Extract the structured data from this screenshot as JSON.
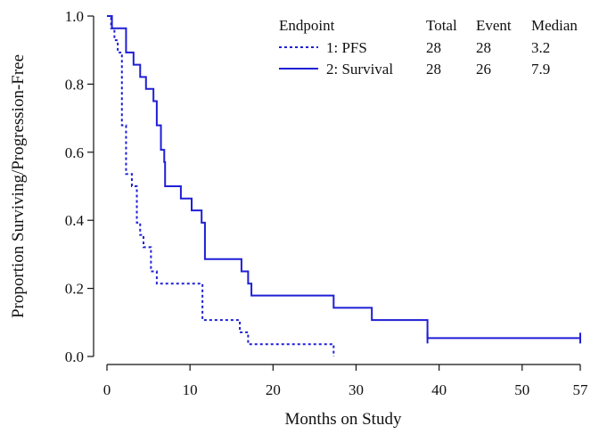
{
  "chart_data": {
    "type": "line",
    "title": "",
    "xlabel": "Months on Study",
    "ylabel": "Proportion Surviving/Progression-Free",
    "xlim": [
      0,
      57
    ],
    "ylim": [
      0,
      1
    ],
    "xticks": [
      0,
      10,
      20,
      30,
      40,
      50,
      57
    ],
    "xtick_labels": [
      "0",
      "10",
      "20",
      "30",
      "40",
      "50",
      "57"
    ],
    "yticks": [
      0,
      0.2,
      0.4,
      0.6,
      0.8,
      1.0
    ],
    "ytick_labels": [
      "0.0",
      "0.2",
      "0.4",
      "0.6",
      "0.8",
      "1.0"
    ],
    "grid": false,
    "legend": {
      "placement": "top-right",
      "headers": [
        "Endpoint",
        "Total",
        "Event",
        "Median"
      ],
      "rows": [
        {
          "label": "1: PFS",
          "total": "28",
          "event": "28",
          "median": "3.2"
        },
        {
          "label": "2: Survival",
          "total": "28",
          "event": "26",
          "median": "7.9"
        }
      ]
    },
    "series": [
      {
        "name": "1: PFS",
        "style": "dotted",
        "color": "#1f1fd6",
        "step": "post",
        "x": [
          0,
          0.5,
          0.9,
          1.3,
          1.8,
          2.3,
          3.0,
          3.6,
          4.0,
          4.4,
          5.3,
          6.0,
          6.2,
          11.5,
          11.9,
          16.0,
          17.0,
          27.3
        ],
        "y": [
          1.0,
          0.964,
          0.929,
          0.893,
          0.679,
          0.536,
          0.5,
          0.393,
          0.357,
          0.321,
          0.25,
          0.214,
          0.214,
          0.107,
          0.107,
          0.071,
          0.036,
          0.0
        ],
        "censored": []
      },
      {
        "name": "2: Survival",
        "style": "solid",
        "color": "#1f1fd6",
        "step": "post",
        "x": [
          0,
          0.6,
          2.3,
          3.2,
          4.0,
          4.7,
          5.6,
          6.0,
          6.5,
          6.9,
          7.0,
          8.9,
          10.2,
          11.4,
          11.8,
          16.2,
          17.0,
          17.4,
          27.3,
          31.9,
          38.6,
          57.0
        ],
        "y": [
          1.0,
          0.964,
          0.893,
          0.857,
          0.821,
          0.786,
          0.75,
          0.679,
          0.607,
          0.571,
          0.5,
          0.464,
          0.429,
          0.393,
          0.286,
          0.25,
          0.214,
          0.179,
          0.143,
          0.107,
          0.054,
          0.054
        ],
        "censored": [
          38.6,
          57.0
        ]
      }
    ]
  }
}
